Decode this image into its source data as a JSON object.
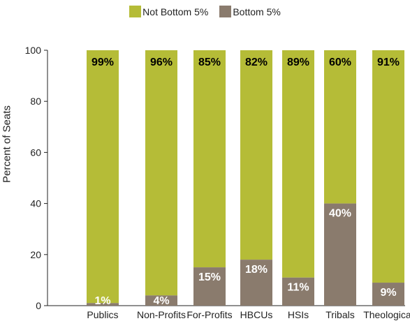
{
  "colors": {
    "not_bottom": "#b5bc37",
    "bottom": "#8a7b6d",
    "axis": "#222222"
  },
  "legend": [
    {
      "label": "Not Bottom 5%",
      "color": "#b5bc37"
    },
    {
      "label": "Bottom 5%",
      "color": "#8a7b6d"
    }
  ],
  "chart_data": {
    "type": "bar",
    "stacked": true,
    "title": "",
    "xlabel": "",
    "ylabel": "Percent of Seats",
    "ylim": [
      0,
      100
    ],
    "yticks": [
      0,
      20,
      40,
      60,
      80,
      100
    ],
    "categories": [
      "Publics",
      "Non-Profits",
      "For-Profits",
      "HBCUs",
      "HSIs",
      "Tribals",
      "Theological"
    ],
    "series": [
      {
        "name": "Bottom 5%",
        "values": [
          1,
          4,
          15,
          18,
          11,
          40,
          9
        ],
        "labels": [
          "1%",
          "4%",
          "15%",
          "18%",
          "11%",
          "40%",
          "9%"
        ]
      },
      {
        "name": "Not Bottom 5%",
        "values": [
          99,
          96,
          85,
          82,
          89,
          60,
          91
        ],
        "labels": [
          "99%",
          "96%",
          "85%",
          "82%",
          "89%",
          "60%",
          "91%"
        ]
      }
    ],
    "legend_position": "top-center"
  }
}
